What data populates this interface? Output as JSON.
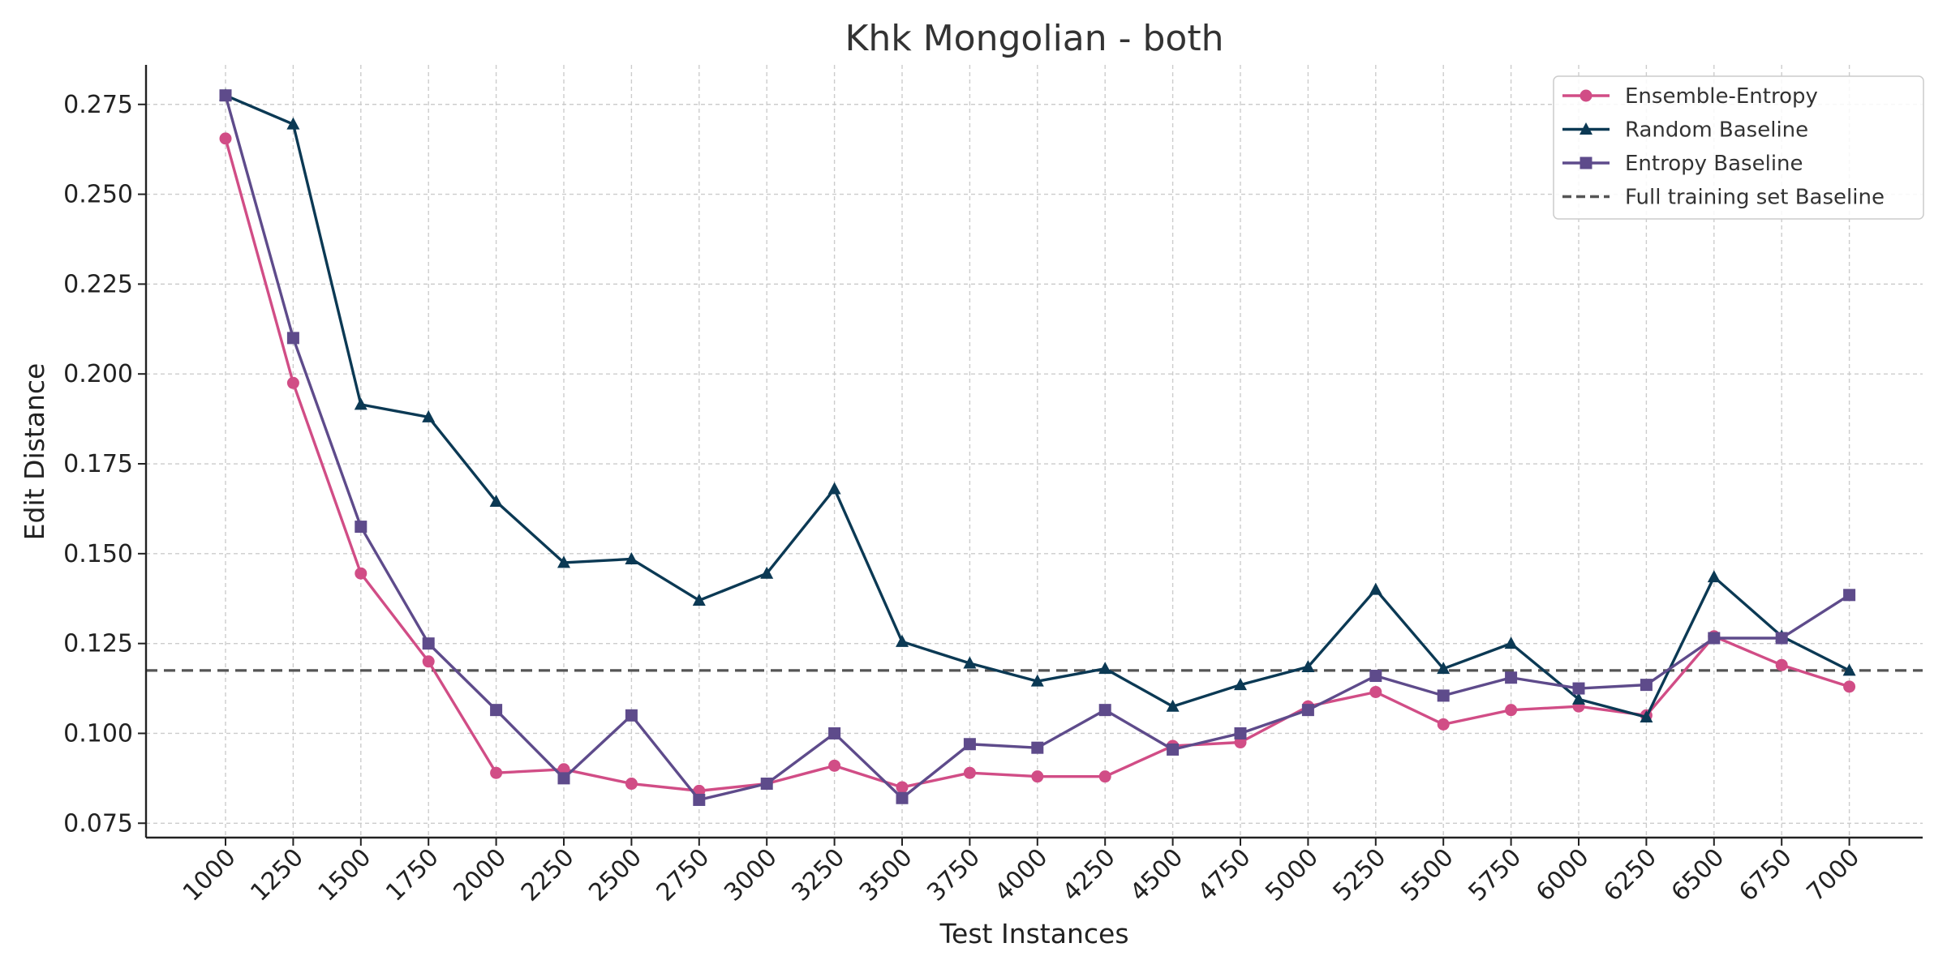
{
  "chart_data": {
    "type": "line",
    "title": "Khk Mongolian - both",
    "xlabel": "Test Instances",
    "ylabel": "Edit Distance",
    "categories": [
      "1000",
      "1250",
      "1500",
      "1750",
      "2000",
      "2250",
      "2500",
      "2750",
      "3000",
      "3250",
      "3500",
      "3750",
      "4000",
      "4250",
      "4500",
      "4750",
      "5000",
      "5250",
      "5500",
      "5750",
      "6000",
      "6250",
      "6500",
      "6750",
      "7000"
    ],
    "ylim": [
      0.071,
      0.286
    ],
    "yticks": [
      "0.075",
      "0.100",
      "0.125",
      "0.150",
      "0.175",
      "0.200",
      "0.225",
      "0.250",
      "0.275"
    ],
    "grid": true,
    "legend_position": "top-right",
    "series": [
      {
        "name": "Ensemble-Entropy",
        "color": "#d14d86",
        "marker": "circle",
        "values": [
          0.2655,
          0.1975,
          0.1445,
          0.12,
          0.089,
          0.09,
          0.086,
          0.084,
          0.086,
          0.091,
          0.085,
          0.089,
          0.088,
          0.088,
          0.0965,
          0.0975,
          0.1075,
          0.1115,
          0.1025,
          0.1065,
          0.1075,
          0.105,
          0.127,
          0.119,
          0.113
        ]
      },
      {
        "name": "Random Baseline",
        "color": "#0b3954",
        "marker": "triangle",
        "values": [
          0.2775,
          0.2695,
          0.1915,
          0.188,
          0.1645,
          0.1475,
          0.1485,
          0.137,
          0.1445,
          0.168,
          0.1255,
          0.1195,
          0.1145,
          0.118,
          0.1075,
          0.1135,
          0.1185,
          0.14,
          0.118,
          0.125,
          0.1095,
          0.1045,
          0.1435,
          0.127,
          0.1175
        ]
      },
      {
        "name": "Entropy Baseline",
        "color": "#5e4b8b",
        "marker": "square",
        "values": [
          0.2775,
          0.21,
          0.1575,
          0.125,
          0.1065,
          0.0875,
          0.105,
          0.0815,
          0.086,
          0.1,
          0.082,
          0.097,
          0.096,
          0.1065,
          0.0955,
          0.1,
          0.1065,
          0.116,
          0.1105,
          0.1155,
          0.1125,
          0.1135,
          0.1265,
          0.1265,
          0.1385
        ]
      }
    ],
    "reference_line": {
      "name": "Full training set Baseline",
      "value": 0.1175,
      "color": "#555555",
      "style": "dashed"
    }
  }
}
